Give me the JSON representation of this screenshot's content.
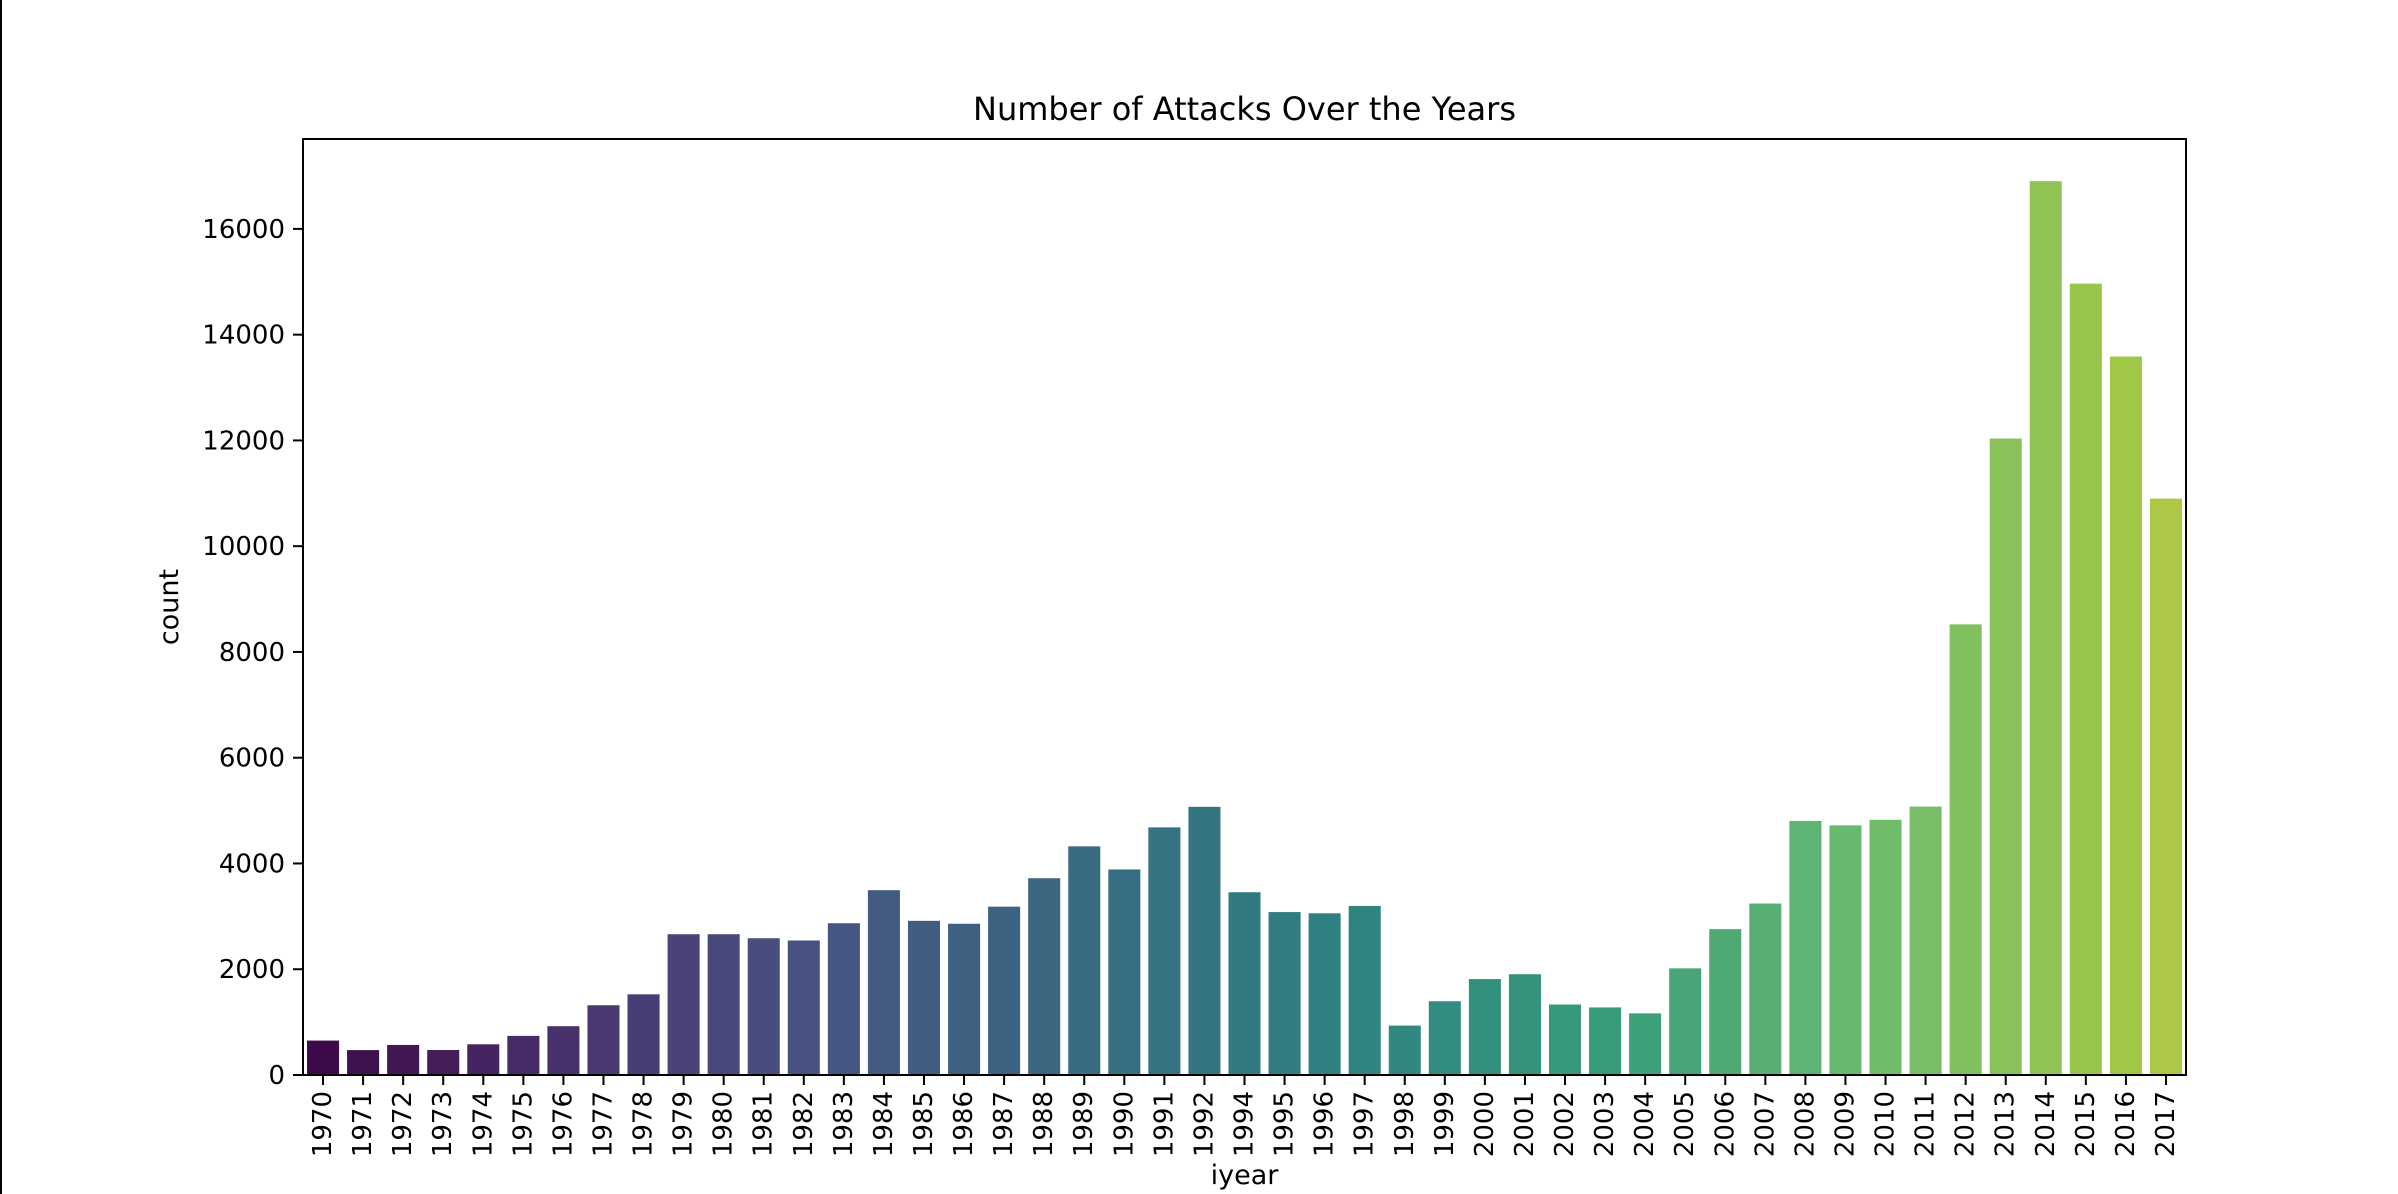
{
  "chart_data": {
    "type": "bar",
    "title": "Number of Attacks Over the Years",
    "xlabel": "iyear",
    "ylabel": "count",
    "ylim": [
      0,
      17700
    ],
    "yticks": [
      0,
      2000,
      4000,
      6000,
      8000,
      10000,
      12000,
      14000,
      16000
    ],
    "categories": [
      "1970",
      "1971",
      "1972",
      "1973",
      "1974",
      "1975",
      "1976",
      "1977",
      "1978",
      "1979",
      "1980",
      "1981",
      "1982",
      "1983",
      "1984",
      "1985",
      "1986",
      "1987",
      "1988",
      "1989",
      "1990",
      "1991",
      "1992",
      "1994",
      "1995",
      "1996",
      "1997",
      "1998",
      "1999",
      "2000",
      "2001",
      "2002",
      "2003",
      "2004",
      "2005",
      "2006",
      "2007",
      "2008",
      "2009",
      "2010",
      "2011",
      "2012",
      "2013",
      "2014",
      "2015",
      "2016",
      "2017"
    ],
    "values": [
      651,
      471,
      568,
      473,
      581,
      740,
      923,
      1319,
      1526,
      2662,
      2662,
      2586,
      2544,
      2870,
      3495,
      2915,
      2860,
      3183,
      3721,
      4324,
      3887,
      4683,
      5071,
      3456,
      3081,
      3058,
      3197,
      934,
      1395,
      1814,
      1906,
      1333,
      1278,
      1166,
      2017,
      2758,
      3242,
      4805,
      4721,
      4826,
      5076,
      8522,
      12036,
      16903,
      14965,
      13587,
      10900
    ],
    "palette": "viridis",
    "grid": false,
    "legend": false
  }
}
